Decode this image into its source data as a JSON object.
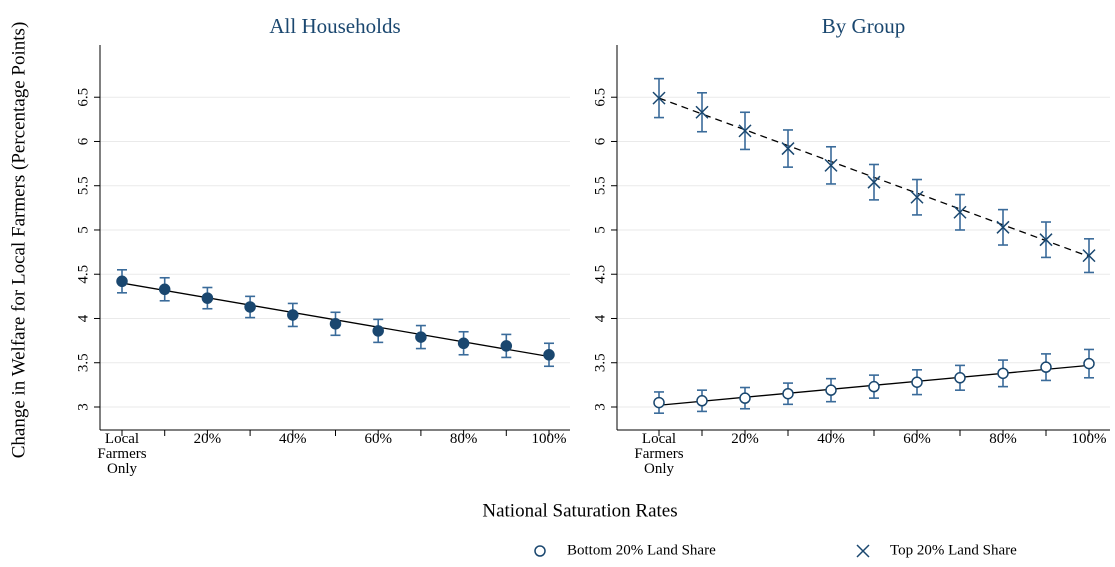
{
  "ylabel": "Change in Welfare for Local Farmers (Percentage Points)",
  "xlabel": "National Saturation Rates",
  "chart_data": [
    {
      "type": "errorbar",
      "title": "All Households",
      "categories": [
        "Local Farmers Only",
        null,
        "20%",
        null,
        "40%",
        null,
        "60%",
        null,
        "80%",
        null,
        "100%"
      ],
      "ylim": [
        2.74,
        7.09
      ],
      "yticks": [
        3,
        3.5,
        4,
        4.5,
        5,
        5.5,
        6,
        6.5
      ],
      "grid": true,
      "series": [
        {
          "color": "#1a476f",
          "marker": "circle",
          "values": [
            4.42,
            4.33,
            4.23,
            4.13,
            4.04,
            3.94,
            3.86,
            3.79,
            3.72,
            3.69,
            3.59
          ],
          "errors": [
            0.13,
            0.13,
            0.12,
            0.12,
            0.13,
            0.13,
            0.13,
            0.13,
            0.13,
            0.13,
            0.13
          ],
          "fit": [
            4.4,
            3.57
          ],
          "fit_dash": false
        }
      ]
    },
    {
      "type": "errorbar",
      "title": "By Group",
      "categories": [
        "Local Farmers Only",
        null,
        "20%",
        null,
        "40%",
        null,
        "60%",
        null,
        "80%",
        null,
        "100%"
      ],
      "ylim": [
        2.74,
        7.09
      ],
      "yticks": [
        3,
        3.5,
        4,
        4.5,
        5,
        5.5,
        6,
        6.5
      ],
      "grid": true,
      "legend": "bottom-right",
      "series": [
        {
          "name": "Bottom 20% Land Share",
          "color": "#1a476f",
          "marker": "hollow-circle",
          "values": [
            3.05,
            3.07,
            3.1,
            3.15,
            3.19,
            3.23,
            3.28,
            3.33,
            3.38,
            3.45,
            3.49
          ],
          "errors": [
            0.12,
            0.12,
            0.12,
            0.12,
            0.13,
            0.13,
            0.14,
            0.14,
            0.15,
            0.15,
            0.16
          ],
          "fit": [
            3.02,
            3.47
          ],
          "fit_dash": false
        },
        {
          "name": "Top 20% Land Share",
          "color": "#1a476f",
          "marker": "x",
          "values": [
            6.49,
            6.33,
            6.12,
            5.92,
            5.73,
            5.54,
            5.37,
            5.2,
            5.03,
            4.89,
            4.71
          ],
          "errors": [
            0.22,
            0.22,
            0.21,
            0.21,
            0.21,
            0.2,
            0.2,
            0.2,
            0.2,
            0.2,
            0.19
          ],
          "fit": [
            6.49,
            4.7
          ],
          "fit_dash": true
        }
      ]
    }
  ]
}
